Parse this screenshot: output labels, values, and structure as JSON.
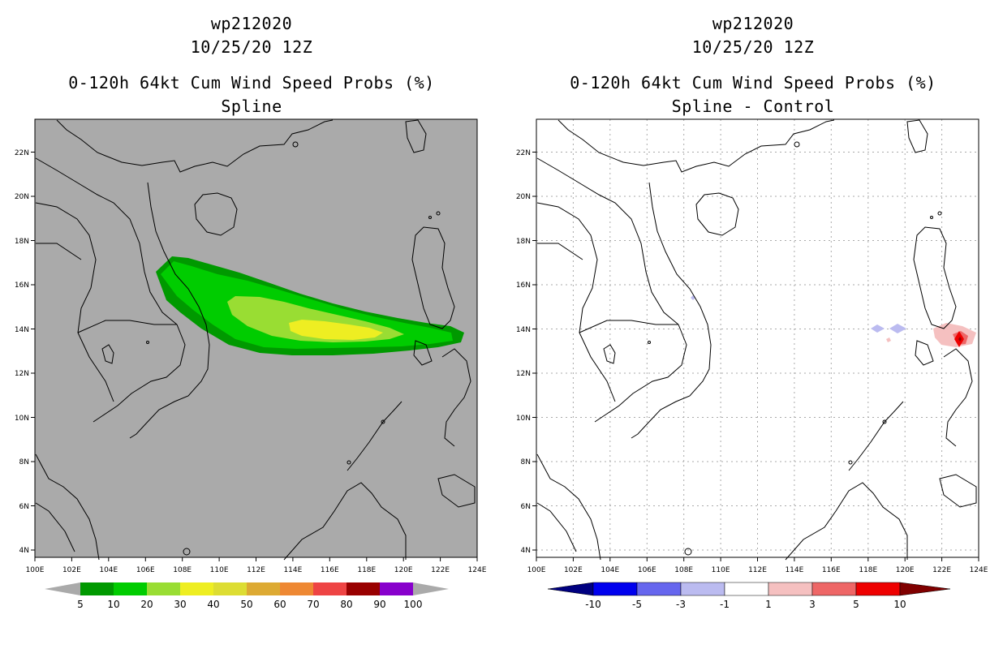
{
  "panels": [
    {
      "storm_id": "wp212020",
      "datetime": "10/25/20 12Z",
      "title": "0-120h 64kt Cum Wind Speed Probs (%)",
      "subtitle": "Spline",
      "legend_labels": [
        "5",
        "10",
        "20",
        "30",
        "40",
        "50",
        "60",
        "70",
        "80",
        "90",
        "100"
      ],
      "legend_colors": [
        "#009900",
        "#00cc00",
        "#99dd33",
        "#eeee22",
        "#dddd33",
        "#ddaa33",
        "#ee8833",
        "#ee4444",
        "#990000",
        "#8800cc"
      ]
    },
    {
      "storm_id": "wp212020",
      "datetime": "10/25/20 12Z",
      "title": "0-120h 64kt Cum Wind Speed Probs (%)",
      "subtitle": "Spline - Control",
      "legend_labels": [
        "-10",
        "-5",
        "-3",
        "-1",
        "1",
        "3",
        "5",
        "10"
      ],
      "legend_colors": [
        "#0000cc",
        "#6666ee",
        "#bbbbf0",
        "#ffffff",
        "#f5c0c0",
        "#ee6666",
        "#ee0000"
      ]
    }
  ],
  "axes": {
    "lon_ticks": [
      "100E",
      "102E",
      "104E",
      "106E",
      "108E",
      "110E",
      "112E",
      "114E",
      "116E",
      "118E",
      "120E",
      "122E",
      "124E"
    ],
    "lat_ticks": [
      "4N",
      "6N",
      "8N",
      "10N",
      "12N",
      "14N",
      "16N",
      "18N",
      "20N",
      "22N"
    ]
  },
  "colors": {
    "land_bg": "#aaaaaa",
    "ocean_bg": "#ffffff"
  }
}
